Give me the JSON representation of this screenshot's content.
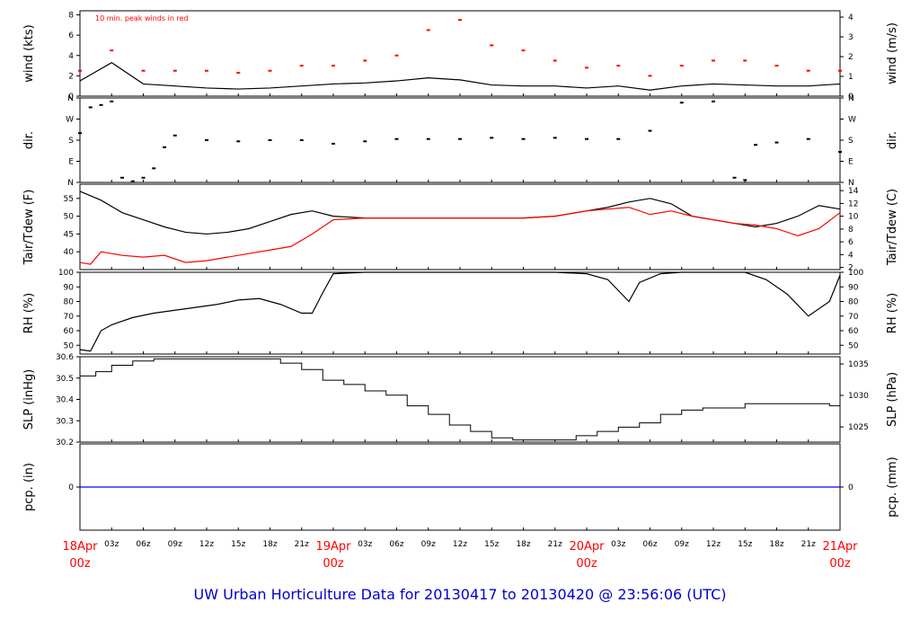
{
  "title": "UW Urban Horticulture Data for 20130417  to  20130420 @ 23:56:06  (UTC)",
  "colors": {
    "primary": "#000000",
    "secondary": "#ff0000",
    "precip": "#0000ff",
    "title": "#0000cc"
  },
  "x_axis": {
    "hours": [
      "03z",
      "06z",
      "09z",
      "12z",
      "15z",
      "18z",
      "21z"
    ],
    "days": [
      {
        "date": "18Apr",
        "hour": "00z"
      },
      {
        "date": "19Apr",
        "hour": "00z"
      },
      {
        "date": "20Apr",
        "hour": "00z"
      },
      {
        "date": "21Apr",
        "hour": "00z"
      }
    ]
  },
  "chart_data": [
    {
      "type": "line",
      "panel": "wind",
      "ylabel_left": "wind (kts)",
      "ylabel_right": "wind (m/s)",
      "ylim": [
        0,
        8.4
      ],
      "yticks_left": [
        "0",
        "2",
        "4",
        "6",
        "8"
      ],
      "yticks_right": [
        {
          "label": "0",
          "value": 0
        },
        {
          "label": "1",
          "value": 1.944
        },
        {
          "label": "2",
          "value": 3.888
        },
        {
          "label": "3",
          "value": 5.832
        },
        {
          "label": "4",
          "value": 7.776
        }
      ],
      "annotation": "10 min. peak winds in red",
      "series": [
        {
          "role": "wind speed",
          "color": "#000000",
          "style": "line",
          "x_hours": [
            0,
            3,
            6,
            9,
            12,
            15,
            18,
            21,
            24,
            27,
            30,
            33,
            36,
            39,
            42,
            45,
            48,
            51,
            54,
            57,
            60,
            63,
            66,
            69,
            72
          ],
          "values": [
            1.5,
            3.3,
            1.2,
            1.0,
            0.8,
            0.7,
            0.8,
            1.0,
            1.2,
            1.3,
            1.5,
            1.8,
            1.6,
            1.1,
            1.0,
            1.0,
            0.8,
            1.0,
            0.6,
            1.0,
            1.2,
            1.1,
            1.0,
            1.0,
            1.2
          ]
        },
        {
          "role": "10 min. peak winds",
          "color": "#ff0000",
          "style": "points",
          "x_hours": [
            0,
            3,
            6,
            9,
            12,
            15,
            18,
            21,
            24,
            27,
            30,
            33,
            36,
            39,
            42,
            45,
            48,
            51,
            54,
            57,
            60,
            63,
            66,
            69,
            72
          ],
          "values": [
            2.5,
            4.5,
            2.5,
            2.5,
            2.5,
            2.3,
            2.5,
            3.0,
            3.0,
            3.5,
            4.0,
            6.5,
            7.5,
            5.0,
            4.5,
            3.5,
            2.8,
            3.0,
            2.0,
            3.0,
            3.5,
            3.5,
            3.0,
            2.5,
            2.5
          ]
        }
      ]
    },
    {
      "type": "scatter",
      "panel": "dir",
      "ylabel_left": "dir.",
      "ylabel_right": "dir.",
      "ylim": [
        0,
        360
      ],
      "yticks_left": [
        {
          "label": "N",
          "value": 0
        },
        {
          "label": "E",
          "value": 90
        },
        {
          "label": "S",
          "value": 180
        },
        {
          "label": "W",
          "value": 270
        },
        {
          "label": "N",
          "value": 360
        }
      ],
      "yticks_right": [
        {
          "label": "N",
          "value": 0
        },
        {
          "label": "E",
          "value": 90
        },
        {
          "label": "S",
          "value": 180
        },
        {
          "label": "W",
          "value": 270
        },
        {
          "label": "N",
          "value": 360
        }
      ],
      "series": [
        {
          "role": "wind direction",
          "color": "#000000",
          "style": "points",
          "x_hours": [
            0,
            1,
            2,
            3,
            4,
            5,
            6,
            7,
            8,
            9,
            12,
            15,
            18,
            21,
            24,
            27,
            30,
            33,
            36,
            39,
            42,
            45,
            48,
            51,
            54,
            57,
            60,
            62,
            63,
            64,
            66,
            69,
            72
          ],
          "values": [
            210,
            320,
            330,
            345,
            20,
            5,
            20,
            60,
            150,
            200,
            180,
            175,
            180,
            180,
            165,
            175,
            185,
            185,
            185,
            190,
            185,
            190,
            185,
            185,
            220,
            340,
            345,
            20,
            10,
            160,
            170,
            185,
            130
          ]
        }
      ]
    },
    {
      "type": "line",
      "panel": "temp",
      "ylabel_left": "Tair/Tdew (F)",
      "ylabel_right": "Tair/Tdew (C)",
      "ylim": [
        35,
        59
      ],
      "yticks_left": [
        "40",
        "45",
        "50",
        "55"
      ],
      "yticks_right": [
        {
          "label": "2",
          "value": 35.6
        },
        {
          "label": "4",
          "value": 39.2
        },
        {
          "label": "6",
          "value": 42.8
        },
        {
          "label": "8",
          "value": 46.4
        },
        {
          "label": "10",
          "value": 50
        },
        {
          "label": "12",
          "value": 53.6
        },
        {
          "label": "14",
          "value": 57.2
        }
      ],
      "series": [
        {
          "role": "air temperature",
          "color": "#000000",
          "style": "line",
          "x_hours": [
            0,
            2,
            4,
            6,
            8,
            10,
            12,
            14,
            16,
            18,
            20,
            22,
            24,
            27,
            30,
            33,
            36,
            39,
            42,
            45,
            48,
            50,
            52,
            54,
            56,
            58,
            60,
            62,
            64,
            66,
            68,
            70,
            72
          ],
          "values": [
            57,
            54.5,
            51,
            49,
            47,
            45.5,
            45,
            45.5,
            46.5,
            48.5,
            50.5,
            51.5,
            50,
            49.5,
            49.5,
            49.5,
            49.5,
            49.5,
            49.5,
            50,
            51.5,
            52.5,
            54,
            55,
            53.5,
            50,
            49,
            48,
            47,
            48,
            50,
            53,
            52
          ]
        },
        {
          "role": "dew point",
          "color": "#ff0000",
          "style": "line",
          "x_hours": [
            0,
            1,
            2,
            4,
            6,
            8,
            10,
            12,
            14,
            16,
            18,
            20,
            22,
            24,
            27,
            30,
            33,
            36,
            39,
            42,
            45,
            48,
            50,
            52,
            54,
            56,
            58,
            60,
            62,
            64,
            66,
            68,
            70,
            72
          ],
          "values": [
            37,
            36.5,
            40,
            39,
            38.5,
            39,
            37,
            37.5,
            38.5,
            39.5,
            40.5,
            41.5,
            45,
            49,
            49.5,
            49.5,
            49.5,
            49.5,
            49.5,
            49.5,
            50,
            51.5,
            52,
            52.5,
            50.5,
            51.5,
            50,
            49,
            48,
            47.5,
            46.5,
            44.5,
            46.5,
            51
          ]
        }
      ]
    },
    {
      "type": "line",
      "panel": "rh",
      "ylabel_left": "RH (%)",
      "ylabel_right": "RH (%)",
      "ylim": [
        44,
        100
      ],
      "yticks_left": [
        "50",
        "60",
        "70",
        "80",
        "90",
        "100"
      ],
      "yticks_right": [
        "50",
        "60",
        "70",
        "80",
        "90",
        "100"
      ],
      "series": [
        {
          "role": "relative humidity",
          "color": "#000000",
          "style": "line",
          "x_hours": [
            0,
            1,
            2,
            3,
            5,
            7,
            9,
            11,
            13,
            15,
            17,
            19,
            21,
            22,
            23,
            24,
            27,
            30,
            33,
            36,
            39,
            42,
            45,
            48,
            50,
            52,
            53,
            55,
            57,
            60,
            63,
            65,
            67,
            69,
            71,
            72
          ],
          "values": [
            47,
            46,
            60,
            64,
            69,
            72,
            74,
            76,
            78,
            81,
            82,
            78,
            72,
            72,
            86,
            99,
            100,
            100,
            100,
            100,
            100,
            100,
            100,
            99,
            95,
            80,
            93,
            99,
            100,
            100,
            100,
            95,
            85,
            70,
            80,
            98
          ]
        }
      ]
    },
    {
      "type": "line",
      "panel": "slp",
      "ylabel_left": "SLP (inHg)",
      "ylabel_right": "SLP (hPa)",
      "ylim": [
        30.2,
        30.6
      ],
      "yticks_left": [
        "30.2",
        "30.3",
        "30.4",
        "30.5",
        "30.6"
      ],
      "yticks_right": [
        {
          "label": "1025",
          "value": 30.271
        },
        {
          "label": "1030",
          "value": 30.419
        },
        {
          "label": "1035",
          "value": 30.566
        }
      ],
      "series": [
        {
          "role": "sea level pressure",
          "color": "#000000",
          "style": "step",
          "x_hours": [
            0,
            1.5,
            3,
            5,
            7,
            9,
            11,
            13,
            15,
            17,
            19,
            21,
            23,
            25,
            27,
            29,
            31,
            33,
            35,
            37,
            39,
            41,
            43,
            45,
            47,
            49,
            51,
            53,
            55,
            57,
            59,
            61,
            63,
            65,
            67,
            69,
            71,
            72
          ],
          "values": [
            30.51,
            30.53,
            30.56,
            30.58,
            30.59,
            30.59,
            30.59,
            30.59,
            30.59,
            30.59,
            30.57,
            30.54,
            30.49,
            30.47,
            30.44,
            30.42,
            30.37,
            30.33,
            30.28,
            30.25,
            30.22,
            30.21,
            30.21,
            30.21,
            30.23,
            30.25,
            30.27,
            30.29,
            30.33,
            30.35,
            30.36,
            30.36,
            30.38,
            30.38,
            30.38,
            30.38,
            30.37,
            30.36
          ]
        }
      ]
    },
    {
      "type": "line",
      "panel": "pcp",
      "ylabel_left": "pcp. (in)",
      "ylabel_right": "pcp. (mm)",
      "ylim": [
        -1,
        1
      ],
      "yticks_left": [
        "0"
      ],
      "yticks_right": [
        "0"
      ],
      "series": [
        {
          "role": "precipitation",
          "color": "#0000ff",
          "style": "line",
          "x_hours": [
            0,
            72
          ],
          "values": [
            0,
            0
          ]
        }
      ]
    }
  ]
}
